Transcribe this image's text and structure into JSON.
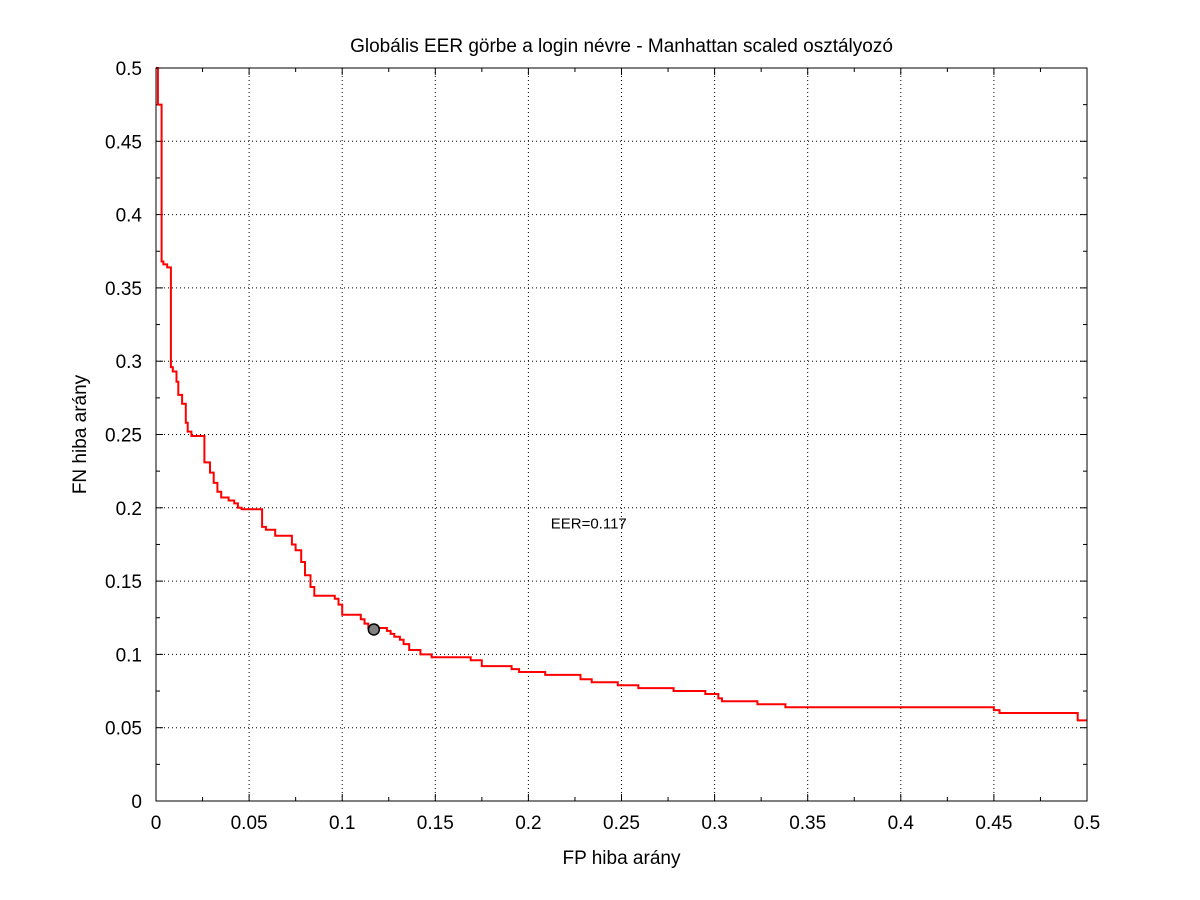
{
  "chart_data": {
    "type": "line",
    "title": "Globális EER görbe a login névre - Manhattan scaled osztályozó",
    "xlabel": "FP hiba arány",
    "ylabel": "FN hiba arány",
    "xlim": [
      0,
      0.5
    ],
    "ylim": [
      0,
      0.5
    ],
    "xticks": [
      "0",
      "0.05",
      "0.1",
      "0.15",
      "0.2",
      "0.25",
      "0.3",
      "0.35",
      "0.4",
      "0.45",
      "0.5"
    ],
    "yticks": [
      "0",
      "0.05",
      "0.1",
      "0.15",
      "0.2",
      "0.25",
      "0.3",
      "0.35",
      "0.4",
      "0.45",
      "0.5"
    ],
    "grid": true,
    "series_color": "#ff0000",
    "marker_color": "#808080",
    "eer_point": {
      "x": 0.117,
      "y": 0.117
    },
    "annotation": "EER=0.117",
    "annotation_position": {
      "x": 0.212,
      "y": 0.186
    },
    "series": [
      {
        "points": [
          [
            0.0,
            0.5
          ],
          [
            0.001,
            0.5
          ],
          [
            0.001,
            0.475
          ],
          [
            0.003,
            0.475
          ],
          [
            0.003,
            0.368
          ],
          [
            0.004,
            0.368
          ],
          [
            0.004,
            0.366
          ],
          [
            0.006,
            0.366
          ],
          [
            0.006,
            0.364
          ],
          [
            0.008,
            0.364
          ],
          [
            0.008,
            0.296
          ],
          [
            0.009,
            0.296
          ],
          [
            0.009,
            0.293
          ],
          [
            0.011,
            0.293
          ],
          [
            0.011,
            0.286
          ],
          [
            0.012,
            0.286
          ],
          [
            0.012,
            0.277
          ],
          [
            0.014,
            0.277
          ],
          [
            0.014,
            0.271
          ],
          [
            0.016,
            0.271
          ],
          [
            0.016,
            0.258
          ],
          [
            0.017,
            0.258
          ],
          [
            0.017,
            0.252
          ],
          [
            0.019,
            0.252
          ],
          [
            0.019,
            0.249
          ],
          [
            0.026,
            0.249
          ],
          [
            0.026,
            0.231
          ],
          [
            0.029,
            0.231
          ],
          [
            0.029,
            0.224
          ],
          [
            0.031,
            0.224
          ],
          [
            0.031,
            0.217
          ],
          [
            0.033,
            0.217
          ],
          [
            0.033,
            0.211
          ],
          [
            0.035,
            0.211
          ],
          [
            0.035,
            0.207
          ],
          [
            0.039,
            0.207
          ],
          [
            0.039,
            0.205
          ],
          [
            0.042,
            0.205
          ],
          [
            0.042,
            0.203
          ],
          [
            0.044,
            0.203
          ],
          [
            0.044,
            0.2
          ],
          [
            0.046,
            0.2
          ],
          [
            0.046,
            0.199
          ],
          [
            0.057,
            0.199
          ],
          [
            0.057,
            0.187
          ],
          [
            0.059,
            0.187
          ],
          [
            0.059,
            0.185
          ],
          [
            0.064,
            0.185
          ],
          [
            0.064,
            0.181
          ],
          [
            0.073,
            0.181
          ],
          [
            0.073,
            0.175
          ],
          [
            0.075,
            0.175
          ],
          [
            0.075,
            0.171
          ],
          [
            0.078,
            0.171
          ],
          [
            0.078,
            0.163
          ],
          [
            0.08,
            0.163
          ],
          [
            0.08,
            0.154
          ],
          [
            0.083,
            0.154
          ],
          [
            0.083,
            0.146
          ],
          [
            0.085,
            0.146
          ],
          [
            0.085,
            0.14
          ],
          [
            0.096,
            0.14
          ],
          [
            0.096,
            0.138
          ],
          [
            0.098,
            0.138
          ],
          [
            0.098,
            0.134
          ],
          [
            0.1,
            0.134
          ],
          [
            0.1,
            0.127
          ],
          [
            0.11,
            0.127
          ],
          [
            0.11,
            0.124
          ],
          [
            0.112,
            0.124
          ],
          [
            0.112,
            0.121
          ],
          [
            0.114,
            0.121
          ],
          [
            0.114,
            0.118
          ],
          [
            0.117,
            0.118
          ],
          [
            0.124,
            0.118
          ],
          [
            0.124,
            0.116
          ],
          [
            0.126,
            0.116
          ],
          [
            0.126,
            0.114
          ],
          [
            0.128,
            0.114
          ],
          [
            0.128,
            0.112
          ],
          [
            0.131,
            0.112
          ],
          [
            0.131,
            0.11
          ],
          [
            0.133,
            0.11
          ],
          [
            0.133,
            0.107
          ],
          [
            0.136,
            0.107
          ],
          [
            0.136,
            0.103
          ],
          [
            0.142,
            0.103
          ],
          [
            0.142,
            0.1
          ],
          [
            0.148,
            0.1
          ],
          [
            0.148,
            0.098
          ],
          [
            0.169,
            0.098
          ],
          [
            0.169,
            0.096
          ],
          [
            0.175,
            0.096
          ],
          [
            0.175,
            0.092
          ],
          [
            0.191,
            0.092
          ],
          [
            0.191,
            0.09
          ],
          [
            0.195,
            0.09
          ],
          [
            0.195,
            0.088
          ],
          [
            0.209,
            0.088
          ],
          [
            0.209,
            0.086
          ],
          [
            0.228,
            0.086
          ],
          [
            0.228,
            0.083
          ],
          [
            0.234,
            0.083
          ],
          [
            0.234,
            0.081
          ],
          [
            0.248,
            0.081
          ],
          [
            0.248,
            0.079
          ],
          [
            0.259,
            0.079
          ],
          [
            0.259,
            0.077
          ],
          [
            0.278,
            0.077
          ],
          [
            0.278,
            0.075
          ],
          [
            0.295,
            0.075
          ],
          [
            0.295,
            0.073
          ],
          [
            0.302,
            0.073
          ],
          [
            0.302,
            0.07
          ],
          [
            0.304,
            0.07
          ],
          [
            0.304,
            0.068
          ],
          [
            0.323,
            0.068
          ],
          [
            0.323,
            0.066
          ],
          [
            0.338,
            0.066
          ],
          [
            0.338,
            0.064
          ],
          [
            0.45,
            0.064
          ],
          [
            0.45,
            0.062
          ],
          [
            0.453,
            0.062
          ],
          [
            0.453,
            0.06
          ],
          [
            0.495,
            0.06
          ],
          [
            0.495,
            0.055
          ],
          [
            0.5,
            0.055
          ]
        ]
      }
    ]
  }
}
